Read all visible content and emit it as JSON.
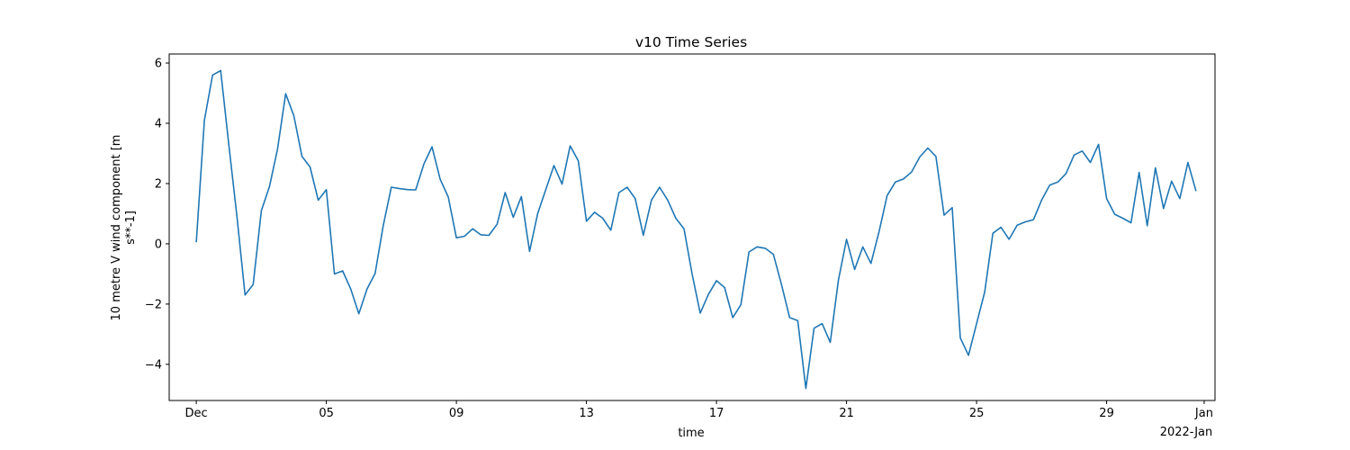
{
  "chart_data": {
    "type": "line",
    "title": "v10 Time Series",
    "xlabel": "time",
    "ylabel_line1": "10 metre V wind component [m",
    "ylabel_line2": "s**-1]",
    "x_start": "2021-12-01T00:00",
    "x_step_hours": 6,
    "x_range": [
      "2021-11-30T04:00",
      "2022-01-01T08:00"
    ],
    "ylim": [
      -5.2,
      6.3
    ],
    "grid": false,
    "x_ticks": [
      {
        "date": "2021-12-01",
        "label": "Dec"
      },
      {
        "date": "2021-12-05",
        "label": "05"
      },
      {
        "date": "2021-12-09",
        "label": "09"
      },
      {
        "date": "2021-12-13",
        "label": "13"
      },
      {
        "date": "2021-12-17",
        "label": "17"
      },
      {
        "date": "2021-12-21",
        "label": "21"
      },
      {
        "date": "2021-12-25",
        "label": "25"
      },
      {
        "date": "2021-12-29",
        "label": "29"
      },
      {
        "date": "2022-01-01",
        "label": "Jan"
      }
    ],
    "x_offset_label": "2022-Jan",
    "y_ticks": [
      -4,
      -2,
      0,
      2,
      4,
      6
    ],
    "series": [
      {
        "color": "#1f77b4",
        "values": [
          0.05,
          4.1,
          5.6,
          5.75,
          3.3,
          0.9,
          -1.7,
          -1.35,
          1.1,
          1.9,
          3.15,
          4.98,
          4.25,
          2.9,
          2.55,
          1.45,
          1.8,
          -1.0,
          -0.9,
          -1.5,
          -2.32,
          -1.5,
          -0.98,
          0.6,
          1.88,
          1.83,
          1.8,
          1.79,
          2.65,
          3.22,
          2.15,
          1.55,
          0.2,
          0.25,
          0.5,
          0.3,
          0.28,
          0.65,
          1.7,
          0.88,
          1.57,
          -0.25,
          1.0,
          1.8,
          2.6,
          1.98,
          3.25,
          2.75,
          0.75,
          1.05,
          0.85,
          0.45,
          1.7,
          1.88,
          1.5,
          0.28,
          1.45,
          1.88,
          1.45,
          0.85,
          0.5,
          -1.0,
          -2.3,
          -1.68,
          -1.22,
          -1.45,
          -2.45,
          -2.02,
          -0.27,
          -0.1,
          -0.15,
          -0.35,
          -1.35,
          -2.45,
          -2.55,
          -4.8,
          -2.8,
          -2.65,
          -3.27,
          -1.2,
          0.15,
          -0.85,
          -0.1,
          -0.65,
          0.4,
          1.6,
          2.05,
          2.15,
          2.38,
          2.88,
          3.18,
          2.9,
          0.95,
          1.2,
          -3.12,
          -3.7,
          -2.65,
          -1.6,
          0.35,
          0.55,
          0.15,
          0.62,
          0.73,
          0.8,
          1.45,
          1.95,
          2.05,
          2.33,
          2.95,
          3.08,
          2.7,
          3.3,
          1.5,
          0.98,
          0.85,
          0.7,
          2.37,
          0.6,
          2.52,
          1.17,
          2.08,
          1.5,
          2.7,
          1.75
        ]
      }
    ]
  }
}
